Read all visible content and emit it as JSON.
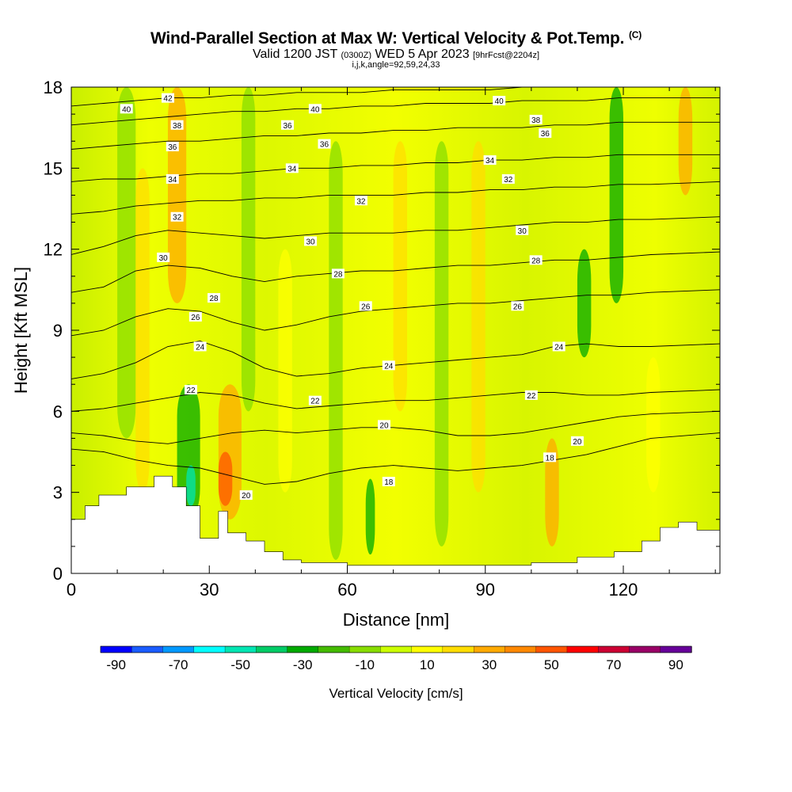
{
  "title": {
    "main": "Wind-Parallel Section at Max W: Vertical Velocity & Pot.Temp.",
    "copyright": "(C)",
    "valid_prefix": "Valid 1200 JST",
    "valid_utc": "(0300Z)",
    "valid_date": "WED 5 Apr 2023",
    "forecast": "[9hrFcst@2204z]",
    "indices": "i,j,k,angle=92,59,24,33"
  },
  "chart_data": {
    "type": "heatmap",
    "title": "Wind-Parallel Section at Max W: Vertical Velocity & Pot.Temp.",
    "xlabel": "Distance [nm]",
    "ylabel": "Height [Kft MSL]",
    "xlim": [
      0,
      141
    ],
    "ylim": [
      0,
      18
    ],
    "xticks": [
      0,
      30,
      60,
      90,
      120
    ],
    "yticks": [
      0,
      3,
      6,
      9,
      12,
      15,
      18
    ],
    "colorbar": {
      "label": "Vertical Velocity [cm/s]",
      "ticks": [
        -90,
        -70,
        -50,
        -30,
        -10,
        10,
        30,
        50,
        70,
        90
      ],
      "colors": [
        "#0000ff",
        "#1a5cff",
        "#0099ff",
        "#00ffff",
        "#00e6b3",
        "#00cc66",
        "#00aa00",
        "#44bb00",
        "#88dd00",
        "#ccff00",
        "#ffff00",
        "#ffdd00",
        "#ffaa00",
        "#ff8800",
        "#ff5500",
        "#ff0000",
        "#cc0033",
        "#990066",
        "#660099"
      ]
    },
    "terrain": [
      [
        0,
        2
      ],
      [
        3,
        2.5
      ],
      [
        6,
        2.9
      ],
      [
        12,
        3.2
      ],
      [
        18,
        3.6
      ],
      [
        22,
        3.2
      ],
      [
        25,
        2.5
      ],
      [
        28,
        1.3
      ],
      [
        32,
        2.3
      ],
      [
        34,
        1.5
      ],
      [
        38,
        1.2
      ],
      [
        42,
        0.8
      ],
      [
        46,
        0.5
      ],
      [
        50,
        0.4
      ],
      [
        60,
        0.3
      ],
      [
        80,
        0.3
      ],
      [
        100,
        0.4
      ],
      [
        110,
        0.6
      ],
      [
        118,
        0.8
      ],
      [
        124,
        1.2
      ],
      [
        128,
        1.7
      ],
      [
        132,
        1.9
      ],
      [
        136,
        1.6
      ],
      [
        141,
        1.6
      ]
    ],
    "theta_contours": [
      {
        "level": 18,
        "heights": [
          4.6,
          4.5,
          4.2,
          4.0,
          3.9,
          3.6,
          3.3,
          3.4,
          3.7,
          3.9,
          4.0,
          3.9,
          3.8,
          3.9,
          4.0,
          4.2,
          4.4,
          4.7,
          5.0,
          5.2
        ]
      },
      {
        "level": 20,
        "heights": [
          5.2,
          5.1,
          4.9,
          4.8,
          5.0,
          5.2,
          5.3,
          5.2,
          5.3,
          5.4,
          5.4,
          5.3,
          5.1,
          5.1,
          5.2,
          5.4,
          5.6,
          5.8,
          5.9,
          6.0
        ]
      },
      {
        "level": 22,
        "heights": [
          6.0,
          6.1,
          6.3,
          6.5,
          6.7,
          6.6,
          6.3,
          6.1,
          6.2,
          6.3,
          6.4,
          6.4,
          6.5,
          6.6,
          6.7,
          6.7,
          6.6,
          6.6,
          6.7,
          6.8
        ]
      },
      {
        "level": 24,
        "heights": [
          7.2,
          7.4,
          7.8,
          8.4,
          8.6,
          8.2,
          7.6,
          7.3,
          7.4,
          7.6,
          7.7,
          7.8,
          7.9,
          8.0,
          8.1,
          8.4,
          8.5,
          8.4,
          8.4,
          8.5
        ]
      },
      {
        "level": 26,
        "heights": [
          8.8,
          9.0,
          9.5,
          9.8,
          9.7,
          9.3,
          9.0,
          9.2,
          9.5,
          9.7,
          9.8,
          9.9,
          10.0,
          10.0,
          10.1,
          10.2,
          10.3,
          10.3,
          10.4,
          10.5
        ]
      },
      {
        "level": 28,
        "heights": [
          10.4,
          10.6,
          11.2,
          11.4,
          11.3,
          11.0,
          10.8,
          11.0,
          11.1,
          11.2,
          11.2,
          11.3,
          11.4,
          11.4,
          11.5,
          11.6,
          11.6,
          11.7,
          11.8,
          11.9
        ]
      },
      {
        "level": 30,
        "heights": [
          11.8,
          12.1,
          12.5,
          12.7,
          12.6,
          12.5,
          12.4,
          12.5,
          12.6,
          12.6,
          12.6,
          12.7,
          12.7,
          12.8,
          12.9,
          13.0,
          13.0,
          13.1,
          13.1,
          13.2
        ]
      },
      {
        "level": 32,
        "heights": [
          13.3,
          13.4,
          13.6,
          13.7,
          13.8,
          13.8,
          13.9,
          13.9,
          14.0,
          14.0,
          14.0,
          14.1,
          14.1,
          14.2,
          14.2,
          14.3,
          14.3,
          14.4,
          14.4,
          14.5
        ]
      },
      {
        "level": 34,
        "heights": [
          14.5,
          14.6,
          14.6,
          14.7,
          14.8,
          14.8,
          14.9,
          15.0,
          15.0,
          15.1,
          15.1,
          15.2,
          15.2,
          15.3,
          15.3,
          15.4,
          15.4,
          15.5,
          15.5,
          15.5
        ]
      },
      {
        "level": 36,
        "heights": [
          15.7,
          15.8,
          15.9,
          16.0,
          16.0,
          16.1,
          16.2,
          16.2,
          16.3,
          16.3,
          16.4,
          16.4,
          16.5,
          16.5,
          16.5,
          16.6,
          16.6,
          16.7,
          16.7,
          16.7
        ]
      },
      {
        "level": 38,
        "heights": [
          16.6,
          16.7,
          16.8,
          16.9,
          17.0,
          17.1,
          17.1,
          17.2,
          17.2,
          17.3,
          17.3,
          17.4,
          17.4,
          17.4,
          17.5,
          17.5,
          17.5,
          17.6,
          17.6,
          17.6
        ]
      },
      {
        "level": 40,
        "heights": [
          17.3,
          17.4,
          17.5,
          17.6,
          17.6,
          17.7,
          17.7,
          17.8,
          17.8,
          17.8,
          17.9,
          17.9,
          17.9,
          17.9,
          18.0,
          18.0,
          18.0,
          18.0,
          18.0,
          18.0
        ]
      }
    ],
    "theta_x_nodes_nm": [
      0,
      7,
      14,
      21,
      28,
      35,
      42,
      49,
      56,
      63,
      70,
      77,
      84,
      91,
      98,
      105,
      112,
      119,
      126,
      141
    ],
    "theta_labels": [
      {
        "text": "42",
        "x": 21,
        "y": 17.6
      },
      {
        "text": "40",
        "x": 12,
        "y": 17.2
      },
      {
        "text": "40",
        "x": 53,
        "y": 17.2
      },
      {
        "text": "40",
        "x": 93,
        "y": 17.5
      },
      {
        "text": "38",
        "x": 23,
        "y": 16.6
      },
      {
        "text": "38",
        "x": 101,
        "y": 16.8
      },
      {
        "text": "36",
        "x": 22,
        "y": 15.8
      },
      {
        "text": "36",
        "x": 47,
        "y": 16.6
      },
      {
        "text": "36",
        "x": 55,
        "y": 15.9
      },
      {
        "text": "36",
        "x": 103,
        "y": 16.3
      },
      {
        "text": "34",
        "x": 22,
        "y": 14.6
      },
      {
        "text": "34",
        "x": 48,
        "y": 15.0
      },
      {
        "text": "34",
        "x": 91,
        "y": 15.3
      },
      {
        "text": "32",
        "x": 23,
        "y": 13.2
      },
      {
        "text": "32",
        "x": 63,
        "y": 13.8
      },
      {
        "text": "32",
        "x": 95,
        "y": 14.6
      },
      {
        "text": "30",
        "x": 20,
        "y": 11.7
      },
      {
        "text": "30",
        "x": 52,
        "y": 12.3
      },
      {
        "text": "30",
        "x": 98,
        "y": 12.7
      },
      {
        "text": "28",
        "x": 31,
        "y": 10.2
      },
      {
        "text": "28",
        "x": 58,
        "y": 11.1
      },
      {
        "text": "28",
        "x": 101,
        "y": 11.6
      },
      {
        "text": "26",
        "x": 27,
        "y": 9.5
      },
      {
        "text": "26",
        "x": 64,
        "y": 9.9
      },
      {
        "text": "26",
        "x": 97,
        "y": 9.9
      },
      {
        "text": "24",
        "x": 28,
        "y": 8.4
      },
      {
        "text": "24",
        "x": 69,
        "y": 7.7
      },
      {
        "text": "24",
        "x": 106,
        "y": 8.4
      },
      {
        "text": "22",
        "x": 26,
        "y": 6.8
      },
      {
        "text": "22",
        "x": 53,
        "y": 6.4
      },
      {
        "text": "22",
        "x": 100,
        "y": 6.6
      },
      {
        "text": "20",
        "x": 68,
        "y": 5.5
      },
      {
        "text": "20",
        "x": 110,
        "y": 4.9
      },
      {
        "text": "20",
        "x": 38,
        "y": 2.9
      },
      {
        "text": "18",
        "x": 104,
        "y": 4.3
      },
      {
        "text": "18",
        "x": 69,
        "y": 3.4
      }
    ],
    "velocity_bands": [
      {
        "x": 10,
        "w": 4,
        "ymin": 5,
        "ymax": 18,
        "value": -10
      },
      {
        "x": 14,
        "w": 3,
        "ymin": 3,
        "ymax": 15,
        "value": 20
      },
      {
        "x": 21,
        "w": 4,
        "ymin": 10,
        "ymax": 18,
        "value": 30
      },
      {
        "x": 23,
        "w": 5,
        "ymin": 2,
        "ymax": 7,
        "value": -30
      },
      {
        "x": 25,
        "w": 2,
        "ymin": 2.5,
        "ymax": 4,
        "value": -50
      },
      {
        "x": 32,
        "w": 5,
        "ymin": 2,
        "ymax": 7,
        "value": 30
      },
      {
        "x": 32,
        "w": 3,
        "ymin": 2.5,
        "ymax": 4.5,
        "value": 50
      },
      {
        "x": 37,
        "w": 3,
        "ymin": 6,
        "ymax": 18,
        "value": -10
      },
      {
        "x": 45,
        "w": 3,
        "ymin": 3,
        "ymax": 12,
        "value": 10
      },
      {
        "x": 56,
        "w": 3,
        "ymin": 0.5,
        "ymax": 16,
        "value": -10
      },
      {
        "x": 64,
        "w": 2,
        "ymin": 0.7,
        "ymax": 3.5,
        "value": -30
      },
      {
        "x": 70,
        "w": 3,
        "ymin": 6,
        "ymax": 16,
        "value": 20
      },
      {
        "x": 79,
        "w": 3,
        "ymin": 1,
        "ymax": 16,
        "value": -10
      },
      {
        "x": 87,
        "w": 3,
        "ymin": 3,
        "ymax": 16,
        "value": 20
      },
      {
        "x": 103,
        "w": 3,
        "ymin": 1,
        "ymax": 5,
        "value": 30
      },
      {
        "x": 110,
        "w": 3,
        "ymin": 8,
        "ymax": 12,
        "value": -30
      },
      {
        "x": 117,
        "w": 3,
        "ymin": 10,
        "ymax": 18,
        "value": -30
      },
      {
        "x": 125,
        "w": 3,
        "ymin": 3,
        "ymax": 8,
        "value": 10
      },
      {
        "x": 132,
        "w": 3,
        "ymin": 14,
        "ymax": 18,
        "value": 30
      }
    ]
  }
}
